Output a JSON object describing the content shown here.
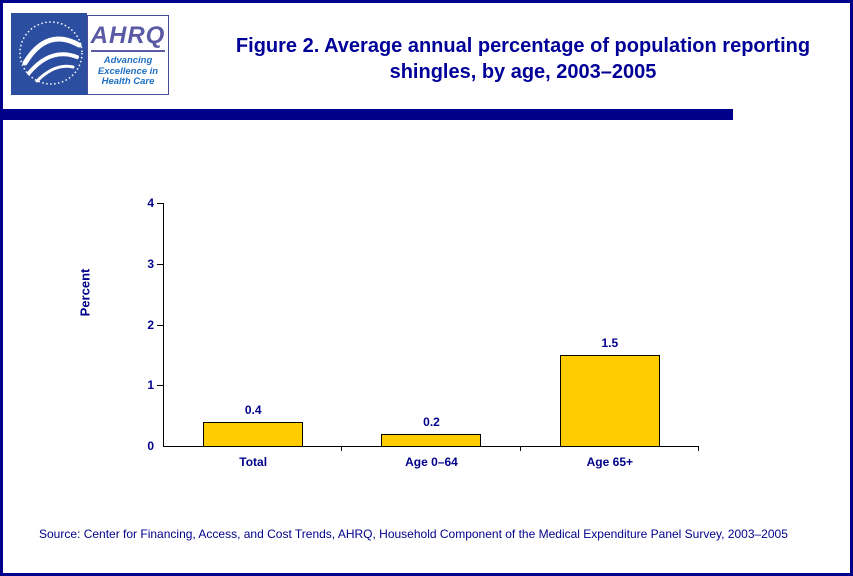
{
  "header": {
    "title": "Figure 2. Average annual percentage of population reporting shingles, by age, 2003–2005",
    "ahrq_logo": {
      "acronym": "AHRQ",
      "tagline": "Advancing Excellence in Health Care"
    }
  },
  "chart_data": {
    "type": "bar",
    "title": "Figure 2. Average annual percentage of population reporting shingles, by age, 2003–2005",
    "categories": [
      "Total",
      "Age 0–64",
      "Age 65+"
    ],
    "values": [
      0.4,
      0.2,
      1.5
    ],
    "xlabel": "",
    "ylabel": "Percent",
    "ylim": [
      0,
      4
    ],
    "yticks": [
      0,
      1,
      2,
      3,
      4
    ],
    "grid": false,
    "legend": false,
    "bar_color": "#FFCC00",
    "bar_border_color": "#000000",
    "value_label_color": "#00008B"
  },
  "footer": {
    "source": "Source: Center for Financing, Access, and Cost Trends, AHRQ, Household Component of the Medical Expenditure Panel Survey, 2003–2005"
  },
  "colors": {
    "accent_navy": "#00008B",
    "title_blue": "#000099",
    "bar_gold": "#FFCC00",
    "hhs_logo_blue": "#2b4ea0",
    "ahrq_purple": "#5a5aa5",
    "ahrq_tagline_blue": "#1f6fc0"
  }
}
